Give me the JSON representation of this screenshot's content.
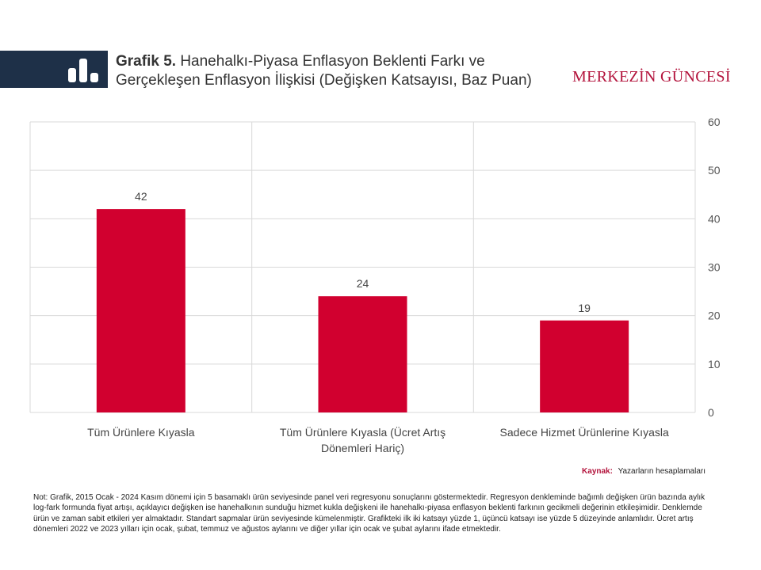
{
  "header": {
    "title_bold": "Grafik 5.",
    "title_line1": "Hanehalkı-Piyasa Enflasyon Beklenti Farkı ve",
    "title_line2": "Gerçekleşen Enflasyon İlişkisi (Değişken Katsayısı, Baz Puan)",
    "brand": "MERKEZİN GÜNCESİ",
    "logo_icon": "bar-chart-icon",
    "banner_color": "#1e3048",
    "brand_color": "#b3133c"
  },
  "chart_data": {
    "type": "bar",
    "categories": [
      "Tüm Ürünlere Kıyasla",
      "Tüm Ürünlere Kıyasla (Ücret Artış Dönemleri Hariç)",
      "Sadece Hizmet Ürünlerine Kıyasla"
    ],
    "values": [
      42,
      24,
      19
    ],
    "data_labels": [
      "42",
      "24",
      "19"
    ],
    "yticks": [
      "60",
      "50",
      "40",
      "30",
      "20",
      "10",
      "0"
    ],
    "ylim": [
      0,
      60
    ],
    "y_axis_side": "right",
    "grid": true,
    "bar_color": "#d1002f",
    "title": "",
    "xlabel": "",
    "ylabel": ""
  },
  "footer": {
    "source_key": "Kaynak:",
    "source_value": "Yazarların hesaplamaları",
    "note": "Not: Grafik, 2015 Ocak - 2024 Kasım dönemi için 5 basamaklı ürün seviyesinde panel veri regresyonu sonuçlarını göstermektedir. Regresyon denkleminde bağımlı değişken ürün bazında aylık log-fark formunda fiyat artışı, açıklayıcı değişken ise hanehalkının sunduğu hizmet kukla değişkeni ile hanehalkı-piyasa enflasyon beklenti farkının gecikmeli değerinin etkileşimidir. Denklemde ürün ve zaman sabit etkileri yer almaktadır. Standart sapmalar ürün seviyesinde kümelenmiştir. Grafikteki ilk iki katsayı yüzde 1, üçüncü katsayı ise yüzde 5 düzeyinde anlamlıdır. Ücret artış dönemleri 2022 ve 2023 yılları için ocak, şubat, temmuz ve ağustos aylarını ve diğer yıllar için ocak ve şubat aylarını ifade etmektedir."
  }
}
